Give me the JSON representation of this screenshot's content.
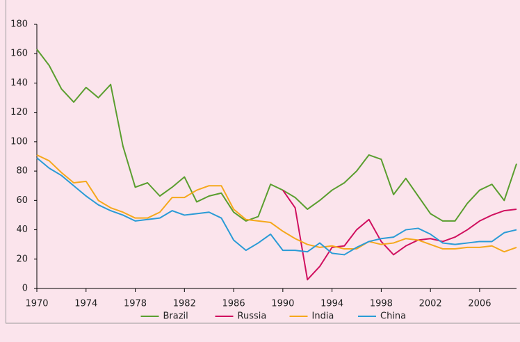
{
  "chart_data": {
    "type": "line",
    "x": [
      1970,
      1971,
      1972,
      1973,
      1974,
      1975,
      1976,
      1977,
      1978,
      1979,
      1980,
      1981,
      1982,
      1983,
      1984,
      1985,
      1986,
      1987,
      1988,
      1989,
      1990,
      1991,
      1992,
      1993,
      1994,
      1995,
      1996,
      1997,
      1998,
      1999,
      2000,
      2001,
      2002,
      2003,
      2004,
      2005,
      2006,
      2007,
      2008,
      2009
    ],
    "series": [
      {
        "name": "Brazil",
        "color": "#5a9e2f",
        "values": [
          163,
          152,
          136,
          127,
          137,
          130,
          139,
          97,
          69,
          72,
          63,
          69,
          76,
          59,
          63,
          65,
          52,
          46,
          49,
          71,
          67,
          62,
          54,
          60,
          67,
          72,
          80,
          91,
          88,
          64,
          75,
          63,
          51,
          46,
          46,
          58,
          67,
          71,
          60,
          85
        ]
      },
      {
        "name": "Russia",
        "color": "#d0105f",
        "values": [
          null,
          null,
          null,
          null,
          null,
          null,
          null,
          null,
          null,
          null,
          null,
          null,
          null,
          null,
          null,
          null,
          null,
          null,
          null,
          null,
          67,
          55,
          6,
          15,
          28,
          29,
          40,
          47,
          32,
          23,
          29,
          33,
          34,
          32,
          35,
          40,
          46,
          50,
          53,
          54
        ]
      },
      {
        "name": "India",
        "color": "#f5a81c",
        "values": [
          91,
          87,
          79,
          72,
          73,
          60,
          55,
          52,
          48,
          48,
          52,
          62,
          62,
          67,
          70,
          70,
          54,
          47,
          46,
          45,
          39,
          34,
          30,
          28,
          29,
          27,
          27,
          32,
          30,
          31,
          34,
          33,
          30,
          27,
          27,
          28,
          28,
          29,
          25,
          28
        ]
      },
      {
        "name": "China",
        "color": "#2a9bd6",
        "values": [
          89,
          82,
          77,
          70,
          63,
          57,
          53,
          50,
          46,
          47,
          48,
          53,
          50,
          51,
          52,
          48,
          33,
          26,
          31,
          37,
          26,
          26,
          25,
          31,
          24,
          23,
          28,
          32,
          34,
          35,
          40,
          41,
          37,
          31,
          30,
          31,
          32,
          32,
          38,
          40
        ]
      }
    ],
    "xlim": [
      1970,
      2009
    ],
    "xticks": [
      1970,
      1974,
      1978,
      1982,
      1986,
      1990,
      1994,
      1998,
      2002,
      2006
    ],
    "ylim": [
      0,
      180
    ],
    "yticks": [
      0,
      20,
      40,
      60,
      80,
      100,
      120,
      140,
      160,
      180
    ],
    "legend": "bottom"
  }
}
